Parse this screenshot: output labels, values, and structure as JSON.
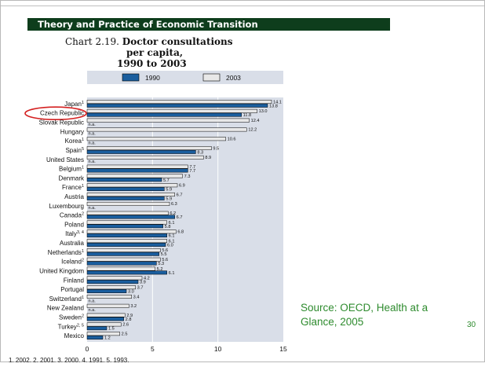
{
  "slide": {
    "header": "Theory and Practice of Economic Transition",
    "source": "Source: OECD, Health at a Glance, 2005",
    "page_number": "30"
  },
  "chart_data": {
    "type": "bar",
    "orientation": "horizontal",
    "title_prefix": "Chart 2.19.",
    "title_lines": [
      "Doctor consultations",
      "per capita,",
      "1990 to 2003"
    ],
    "legend_position": "top",
    "xlim": [
      0,
      15
    ],
    "xticks": [
      "0",
      "5",
      "10",
      "15"
    ],
    "grid": true,
    "na_label": "n.a.",
    "highlight": "Czech Republic",
    "footnote": "1. 2002. 2. 2001. 3. 2000. 4. 1991. 5. 1993.",
    "colors": {
      "1990": "#1a5e9e",
      "2003": "#e8e8e8",
      "plot_bg": "#d9dee8",
      "highlight_ring": "#d42020"
    },
    "series": [
      {
        "name": "1990",
        "values": [
          13.8,
          11.8,
          null,
          null,
          null,
          8.3,
          null,
          7.7,
          5.7,
          5.9,
          5.9,
          null,
          6.7,
          5.8,
          6.1,
          6.0,
          5.5,
          5.3,
          6.1,
          3.9,
          3.0,
          null,
          null,
          2.8,
          1.5,
          1.2
        ]
      },
      {
        "name": "2003",
        "values": [
          14.1,
          13.0,
          12.4,
          12.2,
          10.6,
          9.5,
          8.9,
          7.7,
          7.3,
          6.9,
          6.7,
          6.3,
          6.2,
          6.1,
          6.8,
          6.1,
          5.6,
          5.6,
          5.2,
          4.2,
          3.7,
          3.4,
          3.2,
          2.9,
          2.6,
          2.5
        ]
      }
    ],
    "categories": [
      {
        "name": "Japan",
        "sup": "1"
      },
      {
        "name": "Czech Republic",
        "sup": ""
      },
      {
        "name": "Slovak Republic",
        "sup": ""
      },
      {
        "name": "Hungary",
        "sup": ""
      },
      {
        "name": "Korea",
        "sup": "1"
      },
      {
        "name": "Spain",
        "sup": "5"
      },
      {
        "name": "United States",
        "sup": ""
      },
      {
        "name": "Belgium",
        "sup": "1"
      },
      {
        "name": "Denmark",
        "sup": ""
      },
      {
        "name": "France",
        "sup": "1"
      },
      {
        "name": "Austria",
        "sup": ""
      },
      {
        "name": "Luxembourg",
        "sup": ""
      },
      {
        "name": "Canada",
        "sup": "2"
      },
      {
        "name": "Poland",
        "sup": ""
      },
      {
        "name": "Italy",
        "sup": "3, 4"
      },
      {
        "name": "Australia",
        "sup": ""
      },
      {
        "name": "Netherlands",
        "sup": "1"
      },
      {
        "name": "Iceland",
        "sup": "2"
      },
      {
        "name": "United Kingdom",
        "sup": ""
      },
      {
        "name": "Finland",
        "sup": ""
      },
      {
        "name": "Portugal",
        "sup": ""
      },
      {
        "name": "Switzerland",
        "sup": "1"
      },
      {
        "name": "New Zealand",
        "sup": ""
      },
      {
        "name": "Sweden",
        "sup": "2"
      },
      {
        "name": "Turkey",
        "sup": "2, 5"
      },
      {
        "name": "Mexico",
        "sup": ""
      }
    ]
  }
}
